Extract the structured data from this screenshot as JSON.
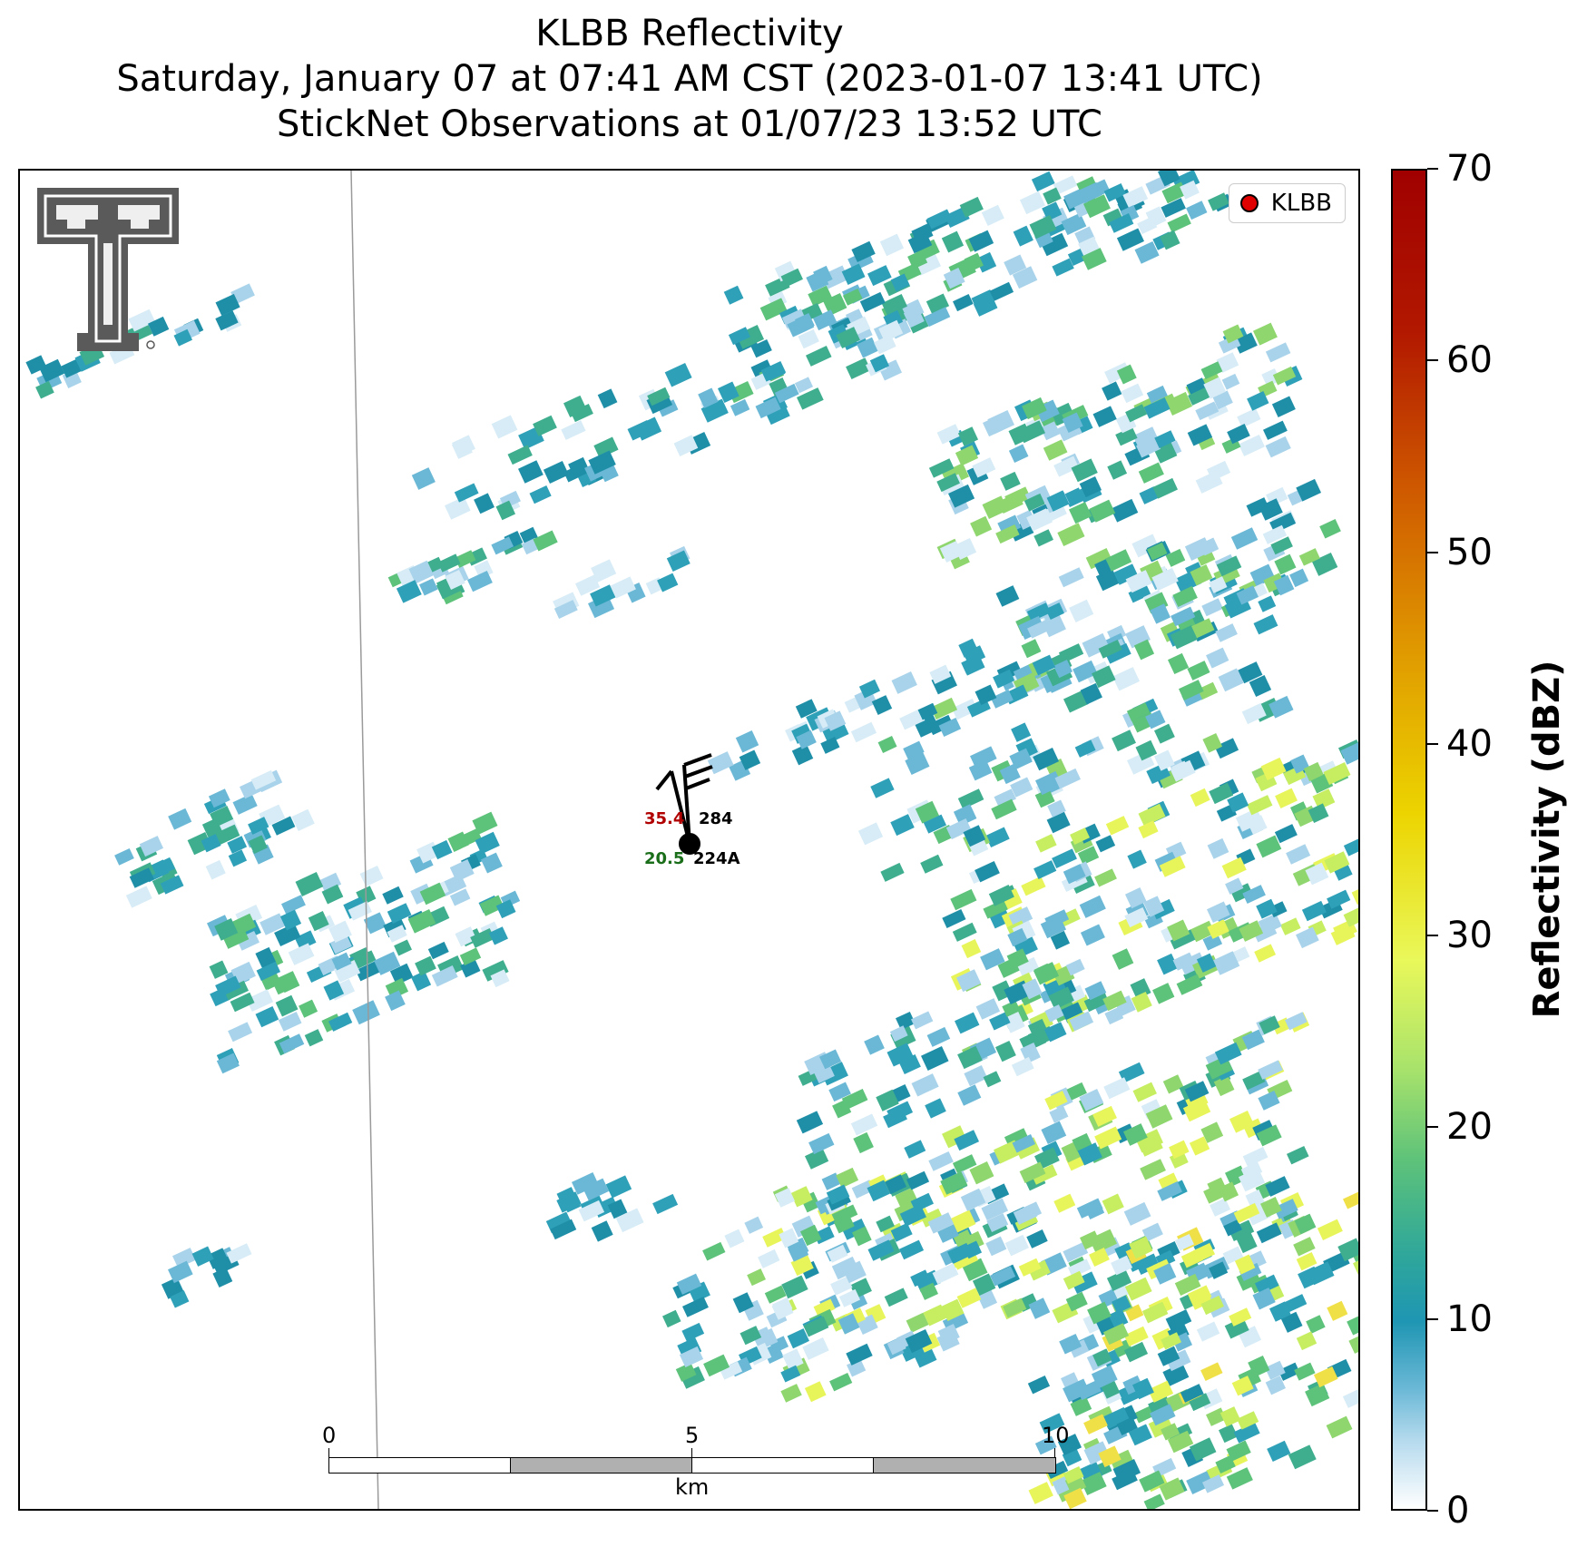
{
  "title": {
    "line1": "KLBB Reflectivity",
    "line2": "Saturday, January 07 at 07:41 AM CST (2023-01-07 13:41 UTC)",
    "line3": "StickNet Observations at 01/07/23 13:52 UTC"
  },
  "legend": {
    "label": "KLBB",
    "marker_color": "#e00000"
  },
  "station": {
    "top_value": "35.4",
    "top_id": "284",
    "bottom_value": "20.5",
    "bottom_id": "224A",
    "top_value_color": "#b00000",
    "bottom_value_color": "#1a6e1a"
  },
  "scalebar": {
    "ticks": [
      "0",
      "5",
      "10"
    ],
    "unit": "km"
  },
  "colorbar": {
    "label": "Reflectivity (dBZ)",
    "ticks": [
      "0",
      "10",
      "20",
      "30",
      "40",
      "50",
      "60",
      "70"
    ],
    "min": 0,
    "max": 70
  },
  "icons": {
    "logo": "texas-tech-double-t-logo-icon",
    "barb": "wind-barb-icon"
  }
}
